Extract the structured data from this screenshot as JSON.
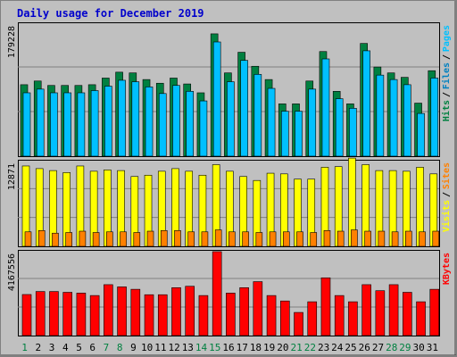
{
  "chart_data": {
    "type": "bar",
    "title": "Daily usage for December 2019",
    "categories": [
      "1",
      "2",
      "3",
      "4",
      "5",
      "6",
      "7",
      "8",
      "9",
      "10",
      "11",
      "12",
      "13",
      "14",
      "15",
      "16",
      "17",
      "18",
      "19",
      "20",
      "21",
      "22",
      "23",
      "24",
      "25",
      "26",
      "27",
      "28",
      "29",
      "30",
      "31"
    ],
    "weekend_days": [
      "1",
      "7",
      "8",
      "14",
      "15",
      "21",
      "22",
      "28",
      "29"
    ],
    "colors": {
      "background": "#c0c0c0",
      "frame": "#808080",
      "title": "#0000cc",
      "hits": "#008040",
      "files": "#00c0ff",
      "pages": "#0080c0",
      "visits": "#ffff00",
      "sites": "#ff8000",
      "kbytes": "#ff0000",
      "weekday_label": "#0000cc",
      "weekend_label": "#008040"
    },
    "panels": [
      {
        "id": "hits_files_pages",
        "scale_label": "179228",
        "ymax": 179228,
        "legend": [
          "Pages",
          "/",
          "Files",
          "/",
          "Hits"
        ],
        "legend_colors": [
          "#00c0ff",
          "#000000",
          "#0080c0",
          "#000000",
          "#008040"
        ],
        "series": [
          {
            "name": "Hits",
            "values": [
              97000,
              102000,
              96000,
              96000,
              96000,
              97000,
              106000,
              114000,
              113000,
              104000,
              99000,
              106000,
              98000,
              86000,
              166000,
              113000,
              141000,
              122000,
              104000,
              71000,
              71000,
              102000,
              142000,
              88000,
              71000,
              153000,
              121000,
              113000,
              107000,
              72000,
              116000
            ]
          },
          {
            "name": "Files",
            "values": [
              86000,
              91000,
              86000,
              86000,
              86000,
              89000,
              95000,
              103000,
              101000,
              94000,
              85000,
              96000,
              88000,
              75000,
              155000,
              101000,
              130000,
              111000,
              92000,
              61000,
              61000,
              91000,
              132000,
              78000,
              65000,
              143000,
              110000,
              104000,
              97000,
              58000,
              106000
            ]
          }
        ]
      },
      {
        "id": "visits_sites",
        "scale_label": "12871",
        "ymax": 12871,
        "legend": [
          "Sites",
          "/",
          "Visits"
        ],
        "legend_colors": [
          "#ff8000",
          "#000000",
          "#ffff00"
        ],
        "series": [
          {
            "name": "Visits",
            "values": [
              12200,
              11800,
              11500,
              11200,
              12200,
              11400,
              11600,
              11500,
              10600,
              10800,
              11400,
              11800,
              11400,
              10800,
              12400,
              11400,
              10600,
              10000,
              11100,
              11000,
              10200,
              10200,
              12000,
              12100,
              13400,
              12400,
              11500,
              11500,
              11400,
              12000,
              11000
            ]
          },
          {
            "name": "Sites",
            "values": [
              2200,
              2400,
              2000,
              2100,
              2300,
              2100,
              2200,
              2200,
              2100,
              2300,
              2400,
              2400,
              2200,
              2200,
              2500,
              2200,
              2200,
              2100,
              2200,
              2200,
              2200,
              2100,
              2400,
              2300,
              2500,
              2300,
              2300,
              2200,
              2300,
              2200,
              2300
            ]
          }
        ]
      },
      {
        "id": "kbytes",
        "scale_label": "4167556",
        "ymax": 4167556,
        "legend": [
          "KBytes"
        ],
        "legend_colors": [
          "#ff0000"
        ],
        "series": [
          {
            "name": "KBytes",
            "values": [
              2040000,
              2190000,
              2190000,
              2150000,
              2110000,
              1990000,
              2530000,
              2420000,
              2300000,
              2030000,
              2030000,
              2380000,
              2450000,
              1990000,
              4170000,
              2110000,
              2380000,
              2680000,
              1990000,
              1720000,
              1150000,
              1680000,
              2870000,
              1990000,
              1680000,
              2530000,
              2230000,
              2530000,
              2150000,
              1680000,
              2300000
            ]
          }
        ]
      }
    ]
  }
}
